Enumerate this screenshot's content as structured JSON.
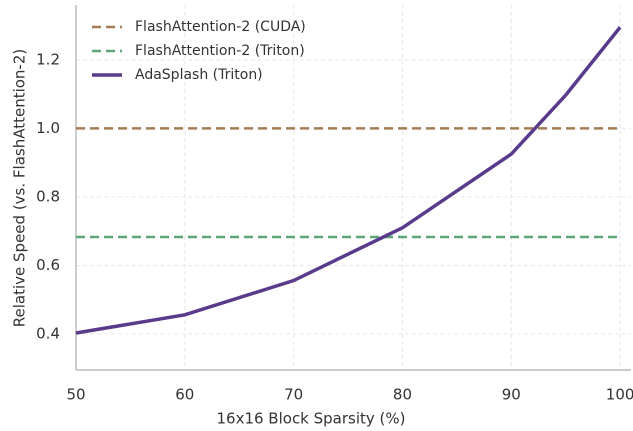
{
  "chart_data": {
    "type": "line",
    "x_label": "16x16 Block Sparsity (%)",
    "y_label": "Relative Speed (vs. FlashAttention-2)",
    "x": [
      50,
      60,
      70,
      80,
      90,
      95,
      100
    ],
    "series": [
      {
        "name": "FlashAttention-2 (CUDA)",
        "color": "#a47d55",
        "dash": true,
        "values": [
          1.0,
          1.0,
          1.0,
          1.0,
          1.0,
          1.0,
          1.0
        ]
      },
      {
        "name": "FlashAttention-2 (Triton)",
        "color": "#5ba577",
        "dash": true,
        "values": [
          0.683,
          0.683,
          0.683,
          0.683,
          0.683,
          0.683,
          0.683
        ]
      },
      {
        "name": "AdaSplash (Triton)",
        "color": "#593a8b",
        "dash": false,
        "values": [
          0.403,
          0.456,
          0.556,
          0.71,
          0.925,
          1.097,
          1.295
        ]
      }
    ],
    "xlim": [
      50,
      101
    ],
    "xticks": [
      50,
      60,
      70,
      80,
      90,
      100
    ],
    "ylim": [
      0.295,
      1.36
    ],
    "yticks": [
      {
        "value": 0.4,
        "label": "0.4"
      },
      {
        "value": 0.6,
        "label": "0.6"
      },
      {
        "value": 0.8,
        "label": "0.8"
      },
      {
        "value": 1.0,
        "label": "1.0"
      },
      {
        "value": 1.2,
        "label": "1.2"
      }
    ],
    "grid": true,
    "legend": "upper-left"
  }
}
